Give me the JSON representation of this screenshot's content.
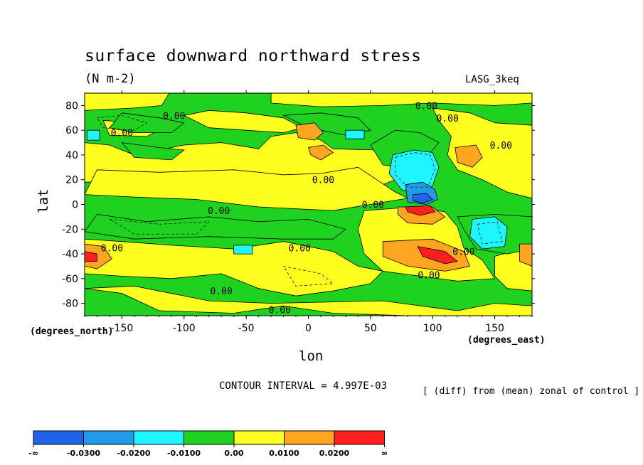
{
  "chart_data": {
    "type": "heatmap",
    "title": "surface downward northward stress",
    "units": "(N m-2)",
    "model": "LASG_3keq",
    "xlabel": "lon",
    "ylabel": "lat",
    "x_unit_label": "(degrees_east)",
    "y_unit_label": "(degrees_north)",
    "xlim": [
      -180,
      180
    ],
    "ylim": [
      -90,
      90
    ],
    "x_ticks": [
      -150,
      -100,
      -50,
      0,
      50,
      100,
      150
    ],
    "y_ticks": [
      80,
      60,
      40,
      20,
      0,
      -20,
      -40,
      -60,
      -80
    ],
    "contour_interval_label": "CONTOUR INTERVAL = 4.997E-03",
    "note": "[ (diff) from (mean) zonal of control ]",
    "contour_labels": [
      {
        "text": "0.00",
        "lon": -108,
        "lat": 72
      },
      {
        "text": "0.00",
        "lon": -150,
        "lat": 58
      },
      {
        "text": "0.00",
        "lon": 95,
        "lat": 80
      },
      {
        "text": "0.00",
        "lon": 112,
        "lat": 70
      },
      {
        "text": "0.00",
        "lon": 155,
        "lat": 48
      },
      {
        "text": "0.00",
        "lon": 12,
        "lat": 20
      },
      {
        "text": "0.00",
        "lon": -72,
        "lat": -5
      },
      {
        "text": "0.00",
        "lon": 52,
        "lat": 0
      },
      {
        "text": "0.00",
        "lon": -158,
        "lat": -35
      },
      {
        "text": "0.00",
        "lon": -7,
        "lat": -35
      },
      {
        "text": "0.00",
        "lon": 125,
        "lat": -38
      },
      {
        "text": "0.00",
        "lon": 97,
        "lat": -57
      },
      {
        "text": "0.00",
        "lon": -70,
        "lat": -70
      },
      {
        "text": "0.00",
        "lon": -23,
        "lat": -85
      }
    ],
    "colorbar": {
      "colors": [
        "#1f63e8",
        "#1f9be8",
        "#1ff5ff",
        "#1fd21f",
        "#ffff1f",
        "#ffa51f",
        "#ff1f1f"
      ],
      "labels": [
        "-∞",
        "-0.0300",
        "-0.0200",
        "-0.0100",
        "0.00",
        "0.0100",
        "0.0200",
        "∞"
      ]
    },
    "colors": {
      "green": "#1fd21f",
      "yellow": "#ffff1f",
      "orange": "#ffa51f",
      "red": "#ff1f1f",
      "cyan": "#1ff5ff",
      "lightblue": "#1f9be8",
      "blue": "#1f63e8"
    }
  }
}
